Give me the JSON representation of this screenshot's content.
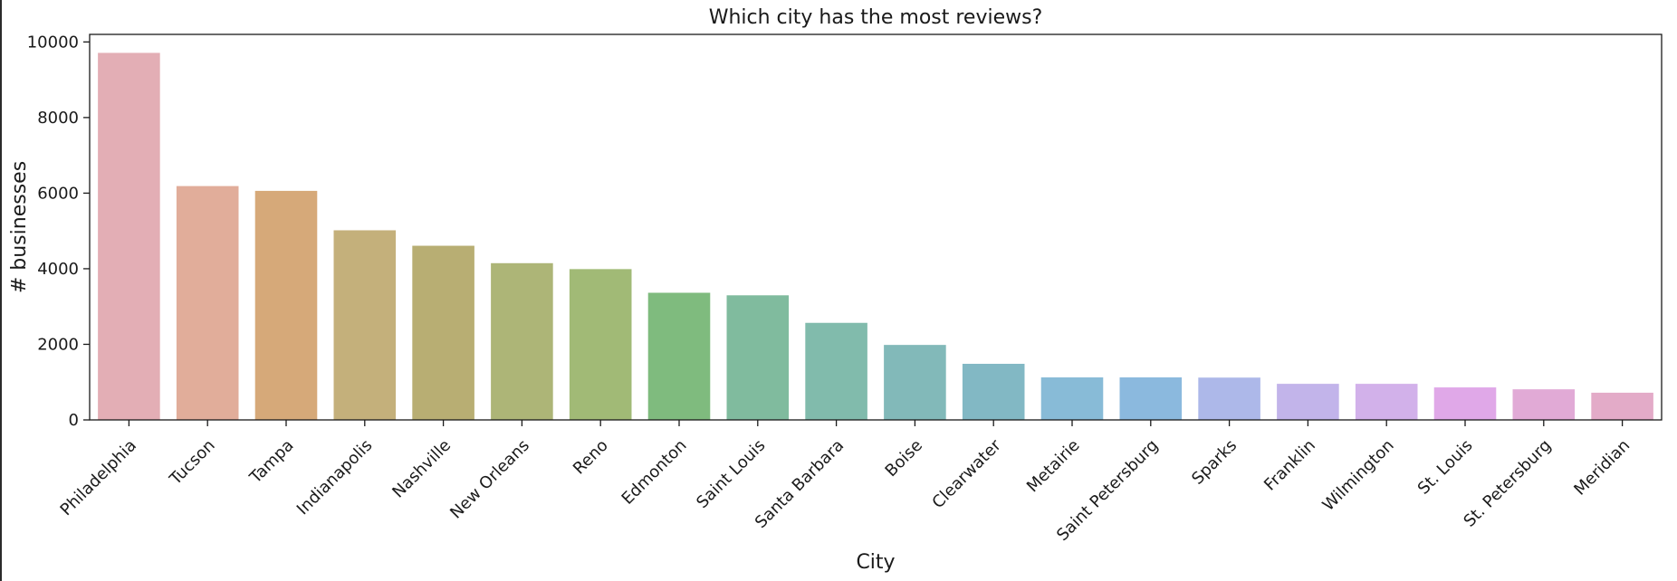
{
  "chart_data": {
    "type": "bar",
    "title": "Which city has the most reviews?",
    "xlabel": "City",
    "ylabel": "# businesses",
    "ylim": [
      0,
      10200
    ],
    "yticks": [
      0,
      2000,
      4000,
      6000,
      8000,
      10000
    ],
    "grid": false,
    "categories": [
      "Philadelphia",
      "Tucson",
      "Tampa",
      "Indianapolis",
      "Nashville",
      "New Orleans",
      "Reno",
      "Edmonton",
      "Saint Louis",
      "Santa Barbara",
      "Boise",
      "Clearwater",
      "Metairie",
      "Saint Petersburg",
      "Sparks",
      "Franklin",
      "Wilmington",
      "St. Louis",
      "St. Petersburg",
      "Meridian"
    ],
    "values": [
      9711,
      6187,
      6060,
      5017,
      4608,
      4147,
      3990,
      3364,
      3297,
      2568,
      1984,
      1484,
      1125,
      1125,
      1120,
      955,
      955,
      860,
      810,
      720
    ],
    "colors": [
      "#e3aeb5",
      "#e1ad9a",
      "#d6a979",
      "#c4b07b",
      "#b8ae73",
      "#adb577",
      "#a1ba76",
      "#7fbb7e",
      "#80bb9e",
      "#81bbac",
      "#82b9b9",
      "#82b8c4",
      "#88bbd7",
      "#8bb9de",
      "#adb8e9",
      "#c2b4ea",
      "#d2b1ea",
      "#e0a8e8",
      "#e1aad6",
      "#e3abc8"
    ]
  }
}
